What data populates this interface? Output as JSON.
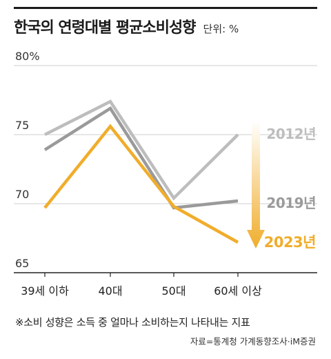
{
  "header": {
    "title": "한국의 연령대별 평균소비성향",
    "unit": "단위: %"
  },
  "footnote": "※소비 성향은 소득 중 얼마나 소비하는지 나타내는 지표",
  "source": "자료=통계청 가계동향조사·iM증권",
  "colors": {
    "s2012": "#bdbdbd",
    "s2019": "#9a9a9a",
    "s2023": "#f0ad2b",
    "arrow_top": "#ffffff",
    "arrow_bottom": "#f0ad2b"
  },
  "chart_data": {
    "type": "line",
    "title": "한국의 연령대별 평균소비성향",
    "unit": "단위: %",
    "categories": [
      "39세 이하",
      "40대",
      "50대",
      "60세 이상"
    ],
    "ylim": [
      65,
      80
    ],
    "yticks": [
      {
        "value": 80,
        "label": "80%"
      },
      {
        "value": 75,
        "label": "75"
      },
      {
        "value": 70,
        "label": "70"
      },
      {
        "value": 65,
        "label": "65"
      }
    ],
    "grid": true,
    "series": [
      {
        "name": "2012년",
        "values": [
          75.0,
          77.4,
          70.4,
          75.0
        ],
        "color_key": "s2012"
      },
      {
        "name": "2019년",
        "values": [
          73.9,
          76.9,
          69.7,
          70.2
        ],
        "color_key": "s2019"
      },
      {
        "name": "2023년",
        "values": [
          69.7,
          75.6,
          69.8,
          67.2
        ],
        "color_key": "s2023"
      }
    ],
    "annotation": "downward arrow from 2012년 to 2023년"
  }
}
